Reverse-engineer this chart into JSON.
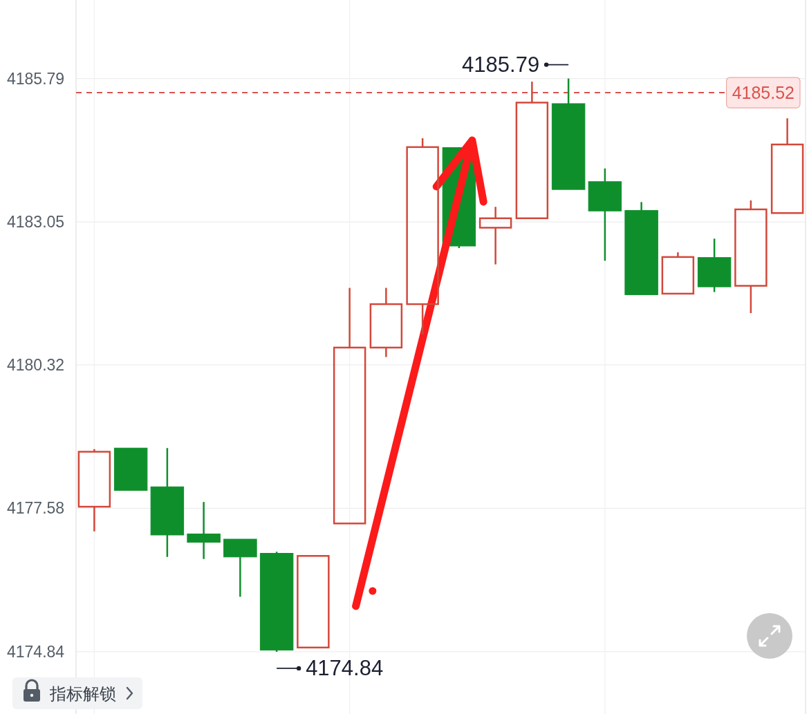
{
  "chart_data": {
    "type": "candlestick",
    "categories": [
      null,
      null,
      null,
      null,
      null,
      null,
      null,
      null,
      null,
      null,
      null,
      null,
      null,
      null,
      null,
      null,
      null,
      null,
      null,
      null
    ],
    "ohlc": [
      [
        4177.61,
        4178.71,
        4177.14,
        4178.66
      ],
      [
        4178.73,
        4178.73,
        4177.92,
        4177.92
      ],
      [
        4177.99,
        4178.73,
        4176.65,
        4177.07
      ],
      [
        4177.09,
        4177.7,
        4176.61,
        4176.93
      ],
      [
        4176.99,
        4176.99,
        4175.89,
        4176.65
      ],
      [
        4176.72,
        4176.75,
        4174.84,
        4174.87
      ],
      [
        4174.92,
        4176.67,
        4174.92,
        4176.67
      ],
      [
        4177.29,
        4181.79,
        4177.29,
        4180.65
      ],
      [
        4180.65,
        4181.79,
        4180.47,
        4181.48
      ],
      [
        4181.48,
        4184.65,
        4180.9,
        4184.48
      ],
      [
        4184.47,
        4184.47,
        4182.55,
        4182.59
      ],
      [
        4182.94,
        4183.34,
        4182.24,
        4183.12
      ],
      [
        4183.12,
        4185.73,
        4183.12,
        4185.33
      ],
      [
        4185.31,
        4185.79,
        4183.67,
        4183.67
      ],
      [
        4183.82,
        4184.07,
        4182.31,
        4183.26
      ],
      [
        4183.27,
        4183.43,
        4181.66,
        4181.66
      ],
      [
        4181.68,
        4182.47,
        4181.68,
        4182.38
      ],
      [
        4182.37,
        4182.73,
        4181.71,
        4181.81
      ],
      [
        4181.83,
        4183.46,
        4181.31,
        4183.29
      ],
      [
        4183.22,
        4185.03,
        4183.22,
        4184.53
      ]
    ],
    "colors": [
      "#d2483a",
      "#0f8f2c",
      "#0f8f2c",
      "#0f8f2c",
      "#0f8f2c",
      "#0f8f2c",
      "#d2483a",
      "#d2483a",
      "#d2483a",
      "#d2483a",
      "#0f8f2c",
      "#d2483a",
      "#d2483a",
      "#0f8f2c",
      "#0f8f2c",
      "#0f8f2c",
      "#d2483a",
      "#0f8f2c",
      "#d2483a",
      "#d2483a"
    ],
    "ylim": [
      4173.65,
      4187.29
    ],
    "yticks": [
      4174.84,
      4177.58,
      4180.32,
      4183.05,
      4185.79
    ],
    "grid": true,
    "ref_lines": [
      {
        "axis": "y",
        "value": 4185.52,
        "label": "4185.52",
        "color": "#d9534f",
        "line_style": "dashed"
      }
    ],
    "annotations": [
      "4185.79",
      "4174.84",
      "指标解锁"
    ]
  }
}
